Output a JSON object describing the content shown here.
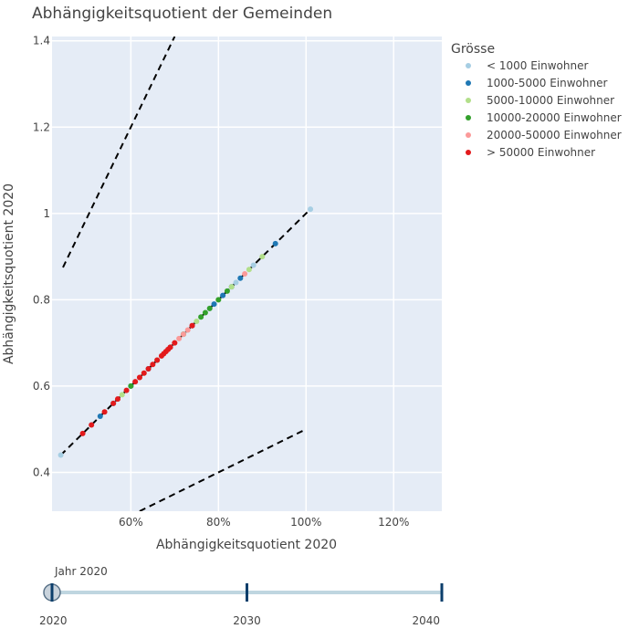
{
  "chart_data": {
    "type": "scatter",
    "title": "Abhängigkeitsquotient der Gemeinden",
    "xlabel": "Abhängigkeitsquotient 2020",
    "ylabel": "Abhängigkeitsquotient 2020",
    "xlim": [
      0.42,
      1.31
    ],
    "ylim": [
      0.31,
      1.41
    ],
    "x_ticks": [
      0.6,
      0.8,
      1.0,
      1.2
    ],
    "x_tick_labels": [
      "60%",
      "80%",
      "100%",
      "120%"
    ],
    "y_ticks": [
      0.4,
      0.6,
      0.8,
      1.0,
      1.2,
      1.4
    ],
    "y_tick_labels": [
      "0.4",
      "0.6",
      "0.8",
      "1",
      "1.2",
      "1.4"
    ],
    "legend": {
      "title": "Grösse",
      "placement": "right"
    },
    "series": [
      {
        "name": "< 1000 Einwohner",
        "color": "#a6cee3",
        "x": [
          0.44,
          0.51,
          0.56,
          0.62,
          0.67,
          0.72,
          0.78,
          0.84,
          0.88,
          1.01
        ],
        "y": [
          0.44,
          0.51,
          0.56,
          0.62,
          0.67,
          0.72,
          0.78,
          0.84,
          0.88,
          1.01
        ]
      },
      {
        "name": "1000-5000 Einwohner",
        "color": "#1f78b4",
        "x": [
          0.53,
          0.56,
          0.6,
          0.64,
          0.69,
          0.74,
          0.79,
          0.81,
          0.83,
          0.85,
          0.93
        ],
        "y": [
          0.53,
          0.56,
          0.6,
          0.64,
          0.69,
          0.74,
          0.79,
          0.81,
          0.83,
          0.85,
          0.93
        ]
      },
      {
        "name": "5000-10000 Einwohner",
        "color": "#b2df8a",
        "x": [
          0.58,
          0.63,
          0.7,
          0.75,
          0.8,
          0.83,
          0.87,
          0.9
        ],
        "y": [
          0.58,
          0.63,
          0.7,
          0.75,
          0.8,
          0.83,
          0.87,
          0.9
        ]
      },
      {
        "name": "10000-20000 Einwohner",
        "color": "#33a02c",
        "x": [
          0.6,
          0.66,
          0.72,
          0.76,
          0.77,
          0.78,
          0.8,
          0.82
        ],
        "y": [
          0.6,
          0.66,
          0.72,
          0.76,
          0.77,
          0.78,
          0.8,
          0.82
        ]
      },
      {
        "name": "20000-50000 Einwohner",
        "color": "#fb9a99",
        "x": [
          0.62,
          0.66,
          0.69,
          0.7,
          0.71,
          0.72,
          0.73,
          0.74,
          0.86
        ],
        "y": [
          0.62,
          0.66,
          0.69,
          0.7,
          0.71,
          0.72,
          0.73,
          0.74,
          0.86
        ]
      },
      {
        "name": "> 50000 Einwohner",
        "color": "#e31a1c",
        "x": [
          0.49,
          0.51,
          0.54,
          0.56,
          0.57,
          0.59,
          0.61,
          0.62,
          0.63,
          0.64,
          0.65,
          0.66,
          0.67,
          0.675,
          0.68,
          0.685,
          0.69,
          0.7,
          0.74
        ],
        "y": [
          0.49,
          0.51,
          0.54,
          0.56,
          0.57,
          0.59,
          0.61,
          0.62,
          0.63,
          0.64,
          0.65,
          0.66,
          0.67,
          0.675,
          0.68,
          0.685,
          0.69,
          0.7,
          0.74
        ]
      }
    ],
    "reference_lines": [
      {
        "name": "identity",
        "x": [
          0.44,
          1.01
        ],
        "y": [
          0.44,
          1.01
        ]
      },
      {
        "name": "upper",
        "x": [
          0.445,
          0.7
        ],
        "y": [
          0.875,
          1.41
        ]
      },
      {
        "name": "lower",
        "x": [
          0.62,
          1.0
        ],
        "y": [
          0.31,
          0.5
        ]
      }
    ]
  },
  "slider": {
    "current_prefix": "Jahr",
    "current_value": "2020",
    "ticks": [
      "2020",
      "2030",
      "2040"
    ],
    "selected_index": 0,
    "track_color": "#bfd6e0",
    "tick_color": "#0b3e6b"
  },
  "colors": {
    "plot_bg": "#e5ecf6",
    "grid": "#ffffff",
    "text": "#444444"
  }
}
